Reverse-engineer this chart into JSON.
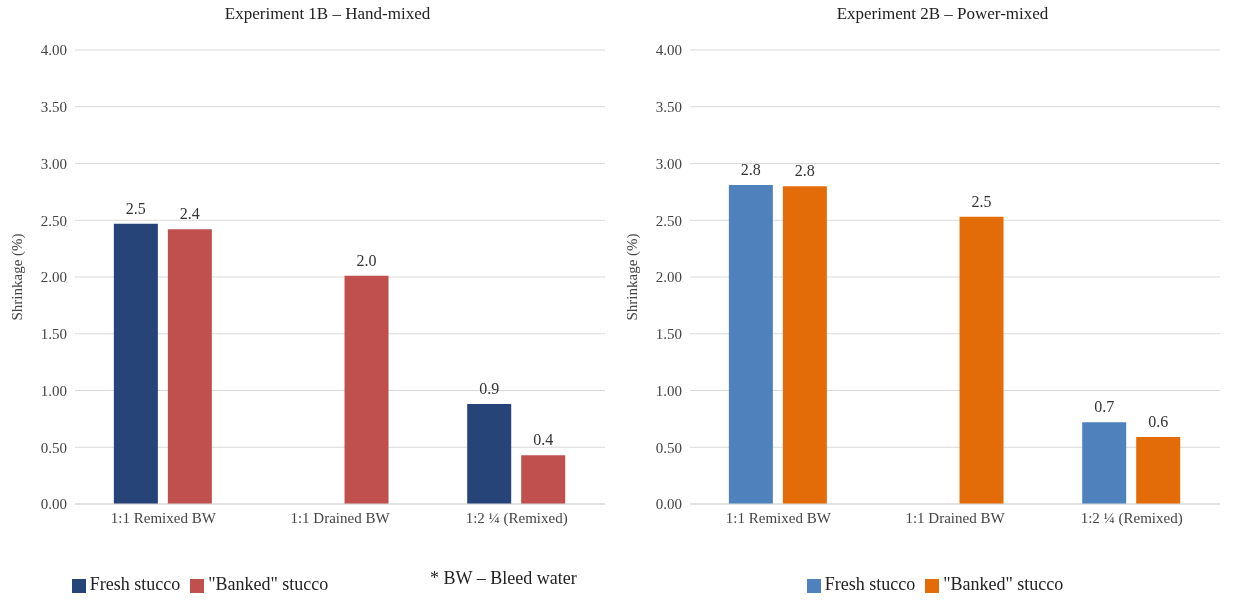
{
  "chart_data": [
    {
      "type": "bar",
      "title": "Experiment 1B – Hand-mixed",
      "ylabel": "Shrinkage (%)",
      "categories": [
        "1:1 Remixed BW",
        "1:1 Drained BW",
        "1:2 ¼ (Remixed)"
      ],
      "series": [
        {
          "name": "Fresh stucco",
          "color": "#264478",
          "values": [
            2.47,
            null,
            0.88
          ],
          "value_labels": [
            "2.5",
            null,
            "0.9"
          ]
        },
        {
          "name": "\"Banked\" stucco",
          "color": "#c0504d",
          "values": [
            2.42,
            2.01,
            0.43
          ],
          "value_labels": [
            "2.4",
            "2.0",
            "0.4"
          ]
        }
      ],
      "ylim": [
        0,
        4
      ],
      "yticks": [
        {
          "value": 0,
          "label": "0.00"
        },
        {
          "value": 0.5,
          "label": "0.50"
        },
        {
          "value": 1,
          "label": "1.00"
        },
        {
          "value": 1.5,
          "label": "1.50"
        },
        {
          "value": 2,
          "label": "2.00"
        },
        {
          "value": 2.5,
          "label": "2.50"
        },
        {
          "value": 3,
          "label": "3.00"
        },
        {
          "value": 3.5,
          "label": "3.50"
        },
        {
          "value": 4,
          "label": "4.00"
        }
      ],
      "grid": "y",
      "legend": "bottom",
      "annotations": [
        "* BW – Bleed water"
      ]
    },
    {
      "type": "bar",
      "title": "Experiment 2B – Power-mixed",
      "ylabel": "Shrinkage (%)",
      "categories": [
        "1:1 Remixed BW",
        "1:1 Drained BW",
        "1:2 ¼ (Remixed)"
      ],
      "series": [
        {
          "name": "Fresh stucco",
          "color": "#4f81bd",
          "values": [
            2.81,
            null,
            0.72
          ],
          "value_labels": [
            "2.8",
            null,
            "0.7"
          ]
        },
        {
          "name": "\"Banked\" stucco",
          "color": "#e36c09",
          "values": [
            2.8,
            2.53,
            0.59
          ],
          "value_labels": [
            "2.8",
            "2.5",
            "0.6"
          ]
        }
      ],
      "ylim": [
        0,
        4
      ],
      "yticks": [
        {
          "value": 0,
          "label": "0.00"
        },
        {
          "value": 0.5,
          "label": "0.50"
        },
        {
          "value": 1,
          "label": "1.00"
        },
        {
          "value": 1.5,
          "label": "1.50"
        },
        {
          "value": 2,
          "label": "2.00"
        },
        {
          "value": 2.5,
          "label": "2.50"
        },
        {
          "value": 3,
          "label": "3.00"
        },
        {
          "value": 3.5,
          "label": "3.50"
        },
        {
          "value": 4,
          "label": "4.00"
        }
      ],
      "grid": "y",
      "legend": "bottom"
    }
  ]
}
